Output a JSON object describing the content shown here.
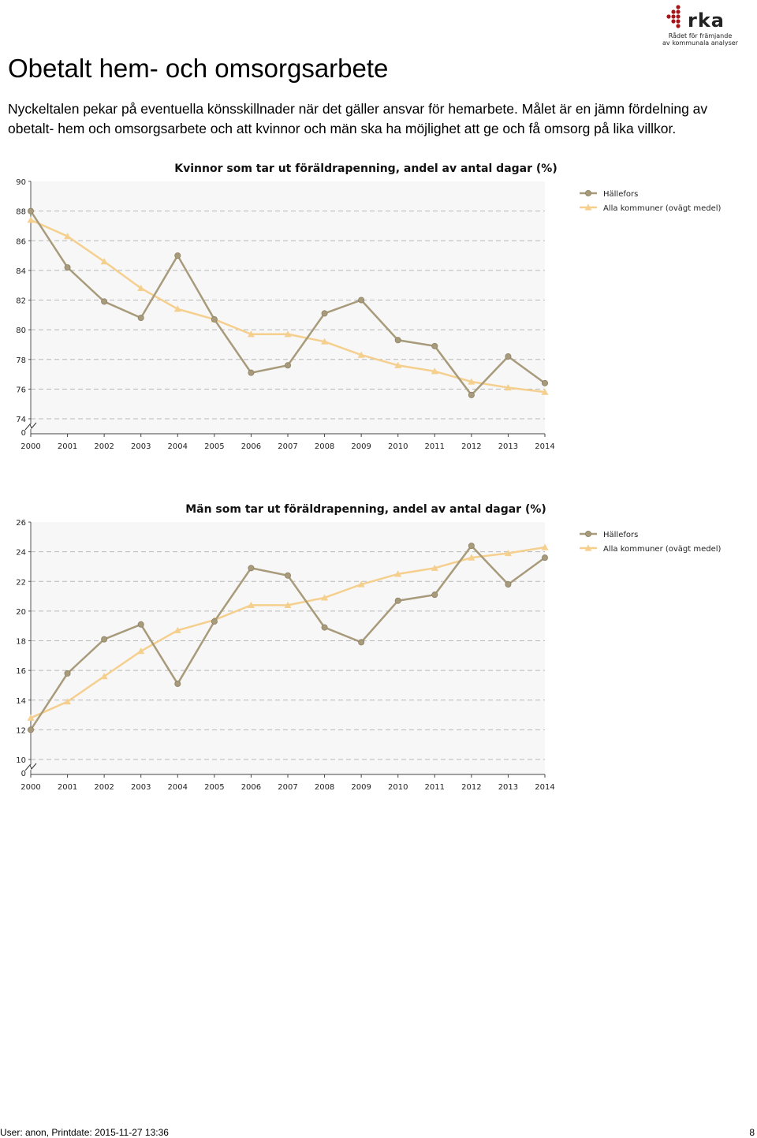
{
  "logo": {
    "word": "rka",
    "line1": "Rådet för främjande",
    "line2": "av kommunala analyser"
  },
  "page": {
    "title": "Obetalt hem- och omsorgsarbete",
    "intro": "Nyckeltalen pekar på eventuella könsskillnader när det gäller ansvar för hemarbete. Målet är en jämn fördelning av obetalt- hem och omsorgsarbete och att kvinnor och män ska ha möjlighet att ge och få omsorg på lika villkor."
  },
  "colors": {
    "hallefors": "#a89b7b",
    "alla": "#f5cf8e",
    "grid": "#b8b8b8",
    "plot_bg": "#f7f7f7"
  },
  "chart_data": [
    {
      "type": "line",
      "title": "Kvinnor som tar ut föräldrapenning, andel av antal dagar (%)",
      "x": [
        "2000",
        "2001",
        "2002",
        "2003",
        "2004",
        "2005",
        "2006",
        "2007",
        "2008",
        "2009",
        "2010",
        "2011",
        "2012",
        "2013",
        "2014"
      ],
      "ylim": [
        74,
        90
      ],
      "yticks": [
        74,
        76,
        78,
        80,
        82,
        84,
        86,
        88,
        90
      ],
      "axis_break_label": "0",
      "grid": true,
      "legend": "top-right",
      "series": [
        {
          "name": "Hällefors",
          "marker": "circle",
          "values": [
            88.0,
            84.2,
            81.9,
            80.8,
            85.0,
            80.7,
            77.1,
            77.6,
            81.1,
            82.0,
            79.3,
            78.9,
            75.6,
            78.2,
            76.4
          ]
        },
        {
          "name": "Alla kommuner (ovägt medel)",
          "marker": "triangle",
          "values": [
            87.4,
            86.3,
            84.6,
            82.8,
            81.4,
            80.7,
            79.7,
            79.7,
            79.2,
            78.3,
            77.6,
            77.2,
            76.5,
            76.1,
            75.8
          ]
        }
      ]
    },
    {
      "type": "line",
      "title": "Män som tar ut föräldrapenning, andel av antal dagar (%)",
      "x": [
        "2000",
        "2001",
        "2002",
        "2003",
        "2004",
        "2005",
        "2006",
        "2007",
        "2008",
        "2009",
        "2010",
        "2011",
        "2012",
        "2013",
        "2014"
      ],
      "ylim": [
        10,
        26
      ],
      "yticks": [
        10,
        12,
        14,
        16,
        18,
        20,
        22,
        24,
        26
      ],
      "axis_break_label": "0",
      "grid": true,
      "legend": "top-right",
      "series": [
        {
          "name": "Hällefors",
          "marker": "circle",
          "values": [
            12.0,
            15.8,
            18.1,
            19.1,
            15.1,
            19.3,
            22.9,
            22.4,
            18.9,
            17.9,
            20.7,
            21.1,
            24.4,
            21.8,
            23.6
          ]
        },
        {
          "name": "Alla kommuner (ovägt medel)",
          "marker": "triangle",
          "values": [
            12.8,
            13.9,
            15.6,
            17.3,
            18.7,
            19.4,
            20.4,
            20.4,
            20.9,
            21.8,
            22.5,
            22.9,
            23.6,
            23.9,
            24.3
          ]
        }
      ]
    }
  ],
  "footer": {
    "left": "User: anon, Printdate: 2015-11-27 13:36",
    "page_number": "8"
  }
}
